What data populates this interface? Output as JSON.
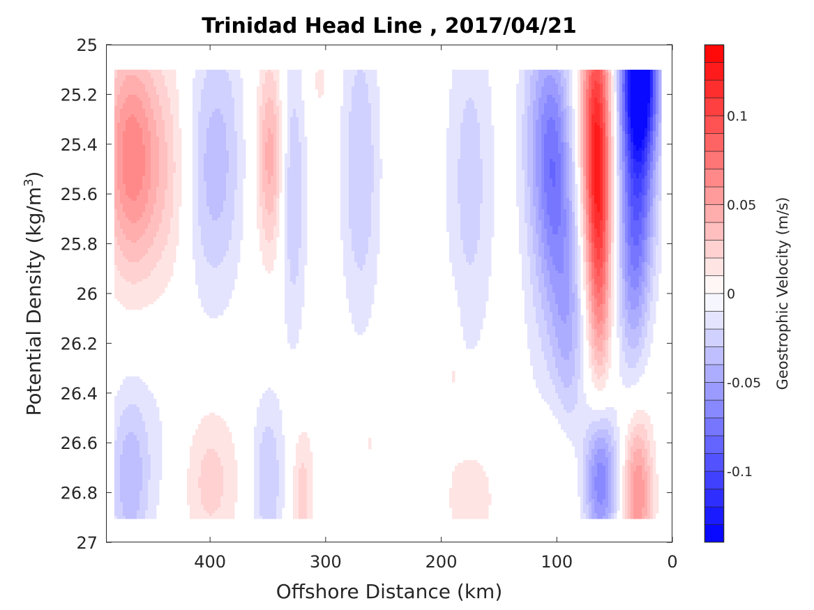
{
  "chart_data": {
    "type": "heatmap",
    "plot_style": "filled contour",
    "title": "Trinidad Head Line , 2017/04/21",
    "xlabel": "Offshore Distance (km)",
    "ylabel_main": "Potential Density (kg/m",
    "ylabel_sup": "3",
    "ylabel_end": ")",
    "x_reversed": true,
    "y_reversed": true,
    "xlim": [
      0,
      490
    ],
    "ylim": [
      25,
      27
    ],
    "xticks": [
      400,
      300,
      200,
      100,
      0
    ],
    "xtick_labels": [
      "400",
      "300",
      "200",
      "100",
      "0"
    ],
    "yticks": [
      25,
      25.2,
      25.4,
      25.6,
      25.8,
      26,
      26.2,
      26.4,
      26.6,
      26.8,
      27
    ],
    "ytick_labels": [
      "25",
      "25.2",
      "25.4",
      "25.6",
      "25.8",
      "26",
      "26.2",
      "26.4",
      "26.6",
      "26.8",
      "27"
    ],
    "colorbar": {
      "label": "Geostrophic Velocity (m/s)",
      "range": [
        -0.14,
        0.14
      ],
      "ticks": [
        0.1,
        0.05,
        0,
        -0.05,
        -0.1
      ],
      "tick_labels": [
        "0.1",
        "0.05",
        "0",
        "-0.05",
        "-0.1"
      ],
      "max_color": "#ff0000",
      "zero_color": "#ffffff",
      "min_color": "#0000ff"
    },
    "data_extent": {
      "x": [
        10,
        482
      ],
      "y": [
        25.1,
        26.9
      ]
    },
    "features": [
      {
        "x": 470,
        "y": 25.45,
        "value": 0.06,
        "sx": 16,
        "sy": 0.32
      },
      {
        "x": 440,
        "y": 25.5,
        "value": 0.025,
        "sx": 20,
        "sy": 0.35
      },
      {
        "x": 405,
        "y": 25.5,
        "value": -0.03,
        "sx": 14,
        "sy": 0.38
      },
      {
        "x": 385,
        "y": 25.45,
        "value": -0.02,
        "sx": 12,
        "sy": 0.4
      },
      {
        "x": 348,
        "y": 25.45,
        "value": 0.045,
        "sx": 8,
        "sy": 0.28
      },
      {
        "x": 328,
        "y": 25.6,
        "value": -0.03,
        "sx": 8,
        "sy": 0.42
      },
      {
        "x": 305,
        "y": 25.15,
        "value": 0.012,
        "sx": 8,
        "sy": 0.12
      },
      {
        "x": 270,
        "y": 25.5,
        "value": -0.03,
        "sx": 12,
        "sy": 0.45
      },
      {
        "x": 175,
        "y": 25.55,
        "value": -0.025,
        "sx": 15,
        "sy": 0.5
      },
      {
        "x": 120,
        "y": 25.3,
        "value": -0.02,
        "sx": 10,
        "sy": 0.35
      },
      {
        "x": 110,
        "y": 25.8,
        "value": -0.02,
        "sx": 14,
        "sy": 0.55
      },
      {
        "x": 103,
        "y": 25.45,
        "value": -0.055,
        "sx": 10,
        "sy": 0.35
      },
      {
        "x": 90,
        "y": 26.1,
        "value": -0.04,
        "sx": 10,
        "sy": 0.45
      },
      {
        "x": 66,
        "y": 25.35,
        "value": 0.11,
        "sx": 9,
        "sy": 0.4
      },
      {
        "x": 63,
        "y": 25.9,
        "value": 0.055,
        "sx": 7,
        "sy": 0.35
      },
      {
        "x": 28,
        "y": 25.1,
        "value": -0.13,
        "sx": 11,
        "sy": 0.22
      },
      {
        "x": 30,
        "y": 25.5,
        "value": -0.085,
        "sx": 11,
        "sy": 0.35
      },
      {
        "x": 35,
        "y": 26.0,
        "value": -0.03,
        "sx": 9,
        "sy": 0.3
      },
      {
        "x": 470,
        "y": 26.75,
        "value": -0.035,
        "sx": 12,
        "sy": 0.25
      },
      {
        "x": 445,
        "y": 26.6,
        "value": -0.01,
        "sx": 20,
        "sy": 0.3
      },
      {
        "x": 400,
        "y": 26.75,
        "value": 0.025,
        "sx": 18,
        "sy": 0.22
      },
      {
        "x": 350,
        "y": 26.75,
        "value": -0.03,
        "sx": 10,
        "sy": 0.25
      },
      {
        "x": 320,
        "y": 26.8,
        "value": 0.025,
        "sx": 7,
        "sy": 0.2
      },
      {
        "x": 262,
        "y": 26.6,
        "value": 0.012,
        "sx": 3,
        "sy": 0.07
      },
      {
        "x": 190,
        "y": 26.3,
        "value": 0.015,
        "sx": 4,
        "sy": 0.18
      },
      {
        "x": 175,
        "y": 26.82,
        "value": 0.02,
        "sx": 15,
        "sy": 0.15
      },
      {
        "x": 95,
        "y": 26.7,
        "value": 0.02,
        "sx": 12,
        "sy": 0.25
      },
      {
        "x": 62,
        "y": 26.75,
        "value": -0.07,
        "sx": 10,
        "sy": 0.2
      },
      {
        "x": 30,
        "y": 26.8,
        "value": 0.06,
        "sx": 9,
        "sy": 0.22
      }
    ]
  }
}
